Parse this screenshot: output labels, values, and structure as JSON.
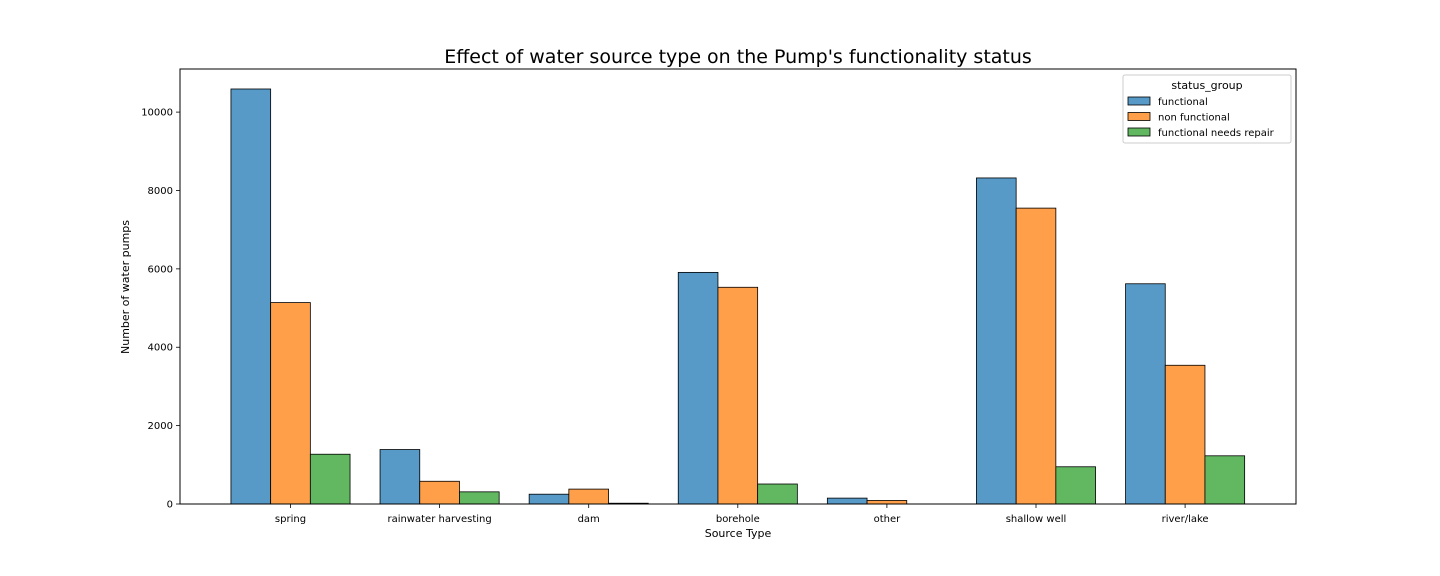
{
  "chart_data": {
    "type": "bar",
    "title": "Effect of water source type on the Pump's functionality status",
    "xlabel": "Source Type",
    "ylabel": "Number of water pumps",
    "categories": [
      "spring",
      "rainwater harvesting",
      "dam",
      "borehole",
      "other",
      "shallow well",
      "river/lake"
    ],
    "series": [
      {
        "name": "functional",
        "color": "#5799c7",
        "values": [
          10590,
          1390,
          250,
          5910,
          150,
          8320,
          5620
        ]
      },
      {
        "name": "non functional",
        "color": "#ff9f4a",
        "values": [
          5140,
          580,
          380,
          5530,
          90,
          7550,
          3540
        ]
      },
      {
        "name": "functional needs repair",
        "color": "#61b861",
        "values": [
          1270,
          310,
          20,
          510,
          0,
          950,
          1230
        ]
      }
    ],
    "ylim": [
      0,
      11100
    ],
    "yticks": [
      0,
      2000,
      4000,
      6000,
      8000,
      10000
    ],
    "legend": {
      "title": "status_group",
      "position": "top-right"
    },
    "grid": false
  }
}
